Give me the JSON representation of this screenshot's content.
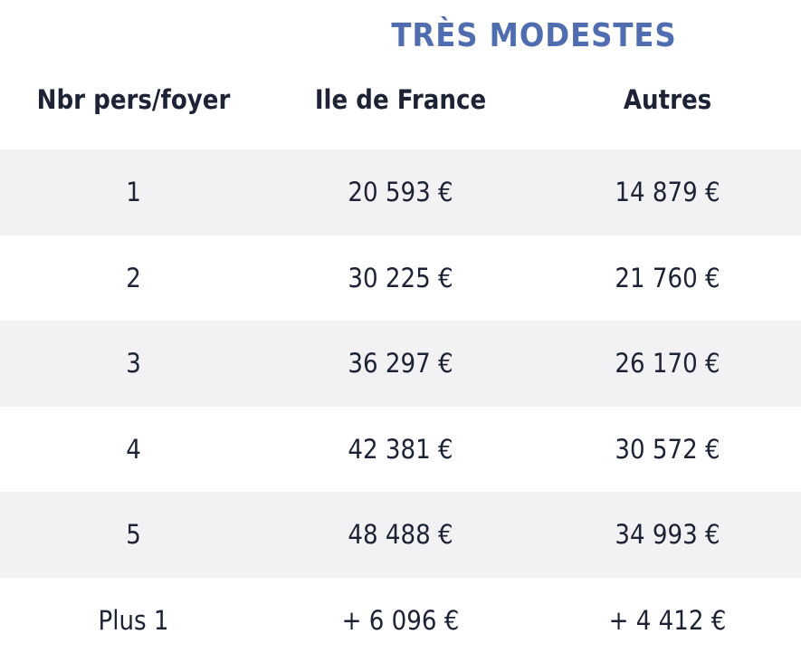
{
  "table": {
    "title": "TRÈS MODESTES",
    "columns": [
      "Nbr pers/foyer",
      "Ile de France",
      "Autres"
    ],
    "rows": [
      [
        "1",
        "20 593 €",
        "14 879 €"
      ],
      [
        "2",
        "30 225 €",
        "21 760 €"
      ],
      [
        "3",
        "36 297 €",
        "26 170 €"
      ],
      [
        "4",
        "42 381 €",
        "30 572 €"
      ],
      [
        "5",
        "48 488 €",
        "34 993 €"
      ],
      [
        "Plus 1",
        "+ 6 096 €",
        "+ 4 412 €"
      ]
    ]
  },
  "colors": {
    "title": "#506db0",
    "text": "#1e2235",
    "row_shade": "#f2f2f4",
    "background": "#ffffff"
  }
}
